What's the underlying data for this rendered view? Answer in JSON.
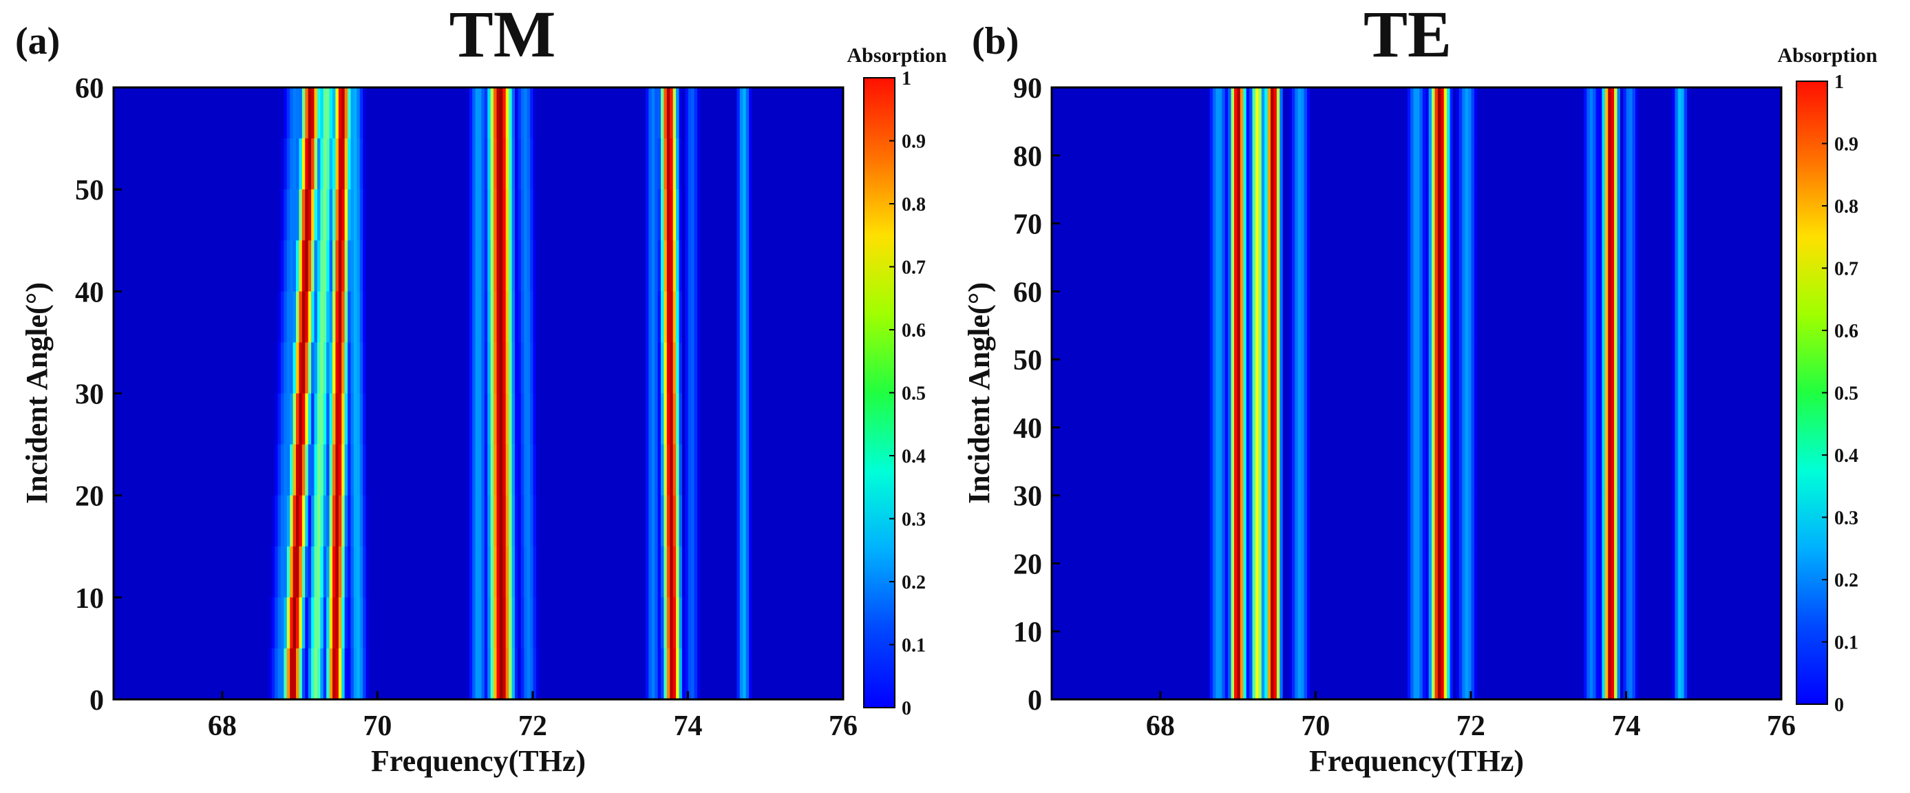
{
  "chart_data": [
    {
      "type": "heatmap",
      "panel_label": "(a)",
      "title": "TM",
      "xlabel": "Frequency(THz)",
      "ylabel": "Incident Angle(°)",
      "xlim": [
        66.6,
        76
      ],
      "ylim": [
        0,
        60
      ],
      "xticks": [
        "68",
        "70",
        "72",
        "74",
        "76"
      ],
      "yticks": [
        "0",
        "10",
        "20",
        "30",
        "40",
        "50",
        "60"
      ],
      "colorbar": {
        "label": "Absorption",
        "range": [
          0,
          1
        ],
        "ticks": [
          "0",
          "0.1",
          "0.2",
          "0.3",
          "0.4",
          "0.5",
          "0.6",
          "0.7",
          "0.8",
          "0.9",
          "1"
        ]
      },
      "background_absorption": 0.07,
      "bands": [
        {
          "f0": 68.9,
          "f90": 69.15,
          "peak": 0.97,
          "width": 0.11
        },
        {
          "f0": 69.2,
          "f90": 69.35,
          "peak": 0.5,
          "width": 0.1
        },
        {
          "f0": 69.45,
          "f90": 69.55,
          "peak": 0.96,
          "width": 0.1
        },
        {
          "f0": 68.75,
          "f90": 68.95,
          "peak": 0.25,
          "width": 0.15
        },
        {
          "f0": 69.75,
          "f90": 69.7,
          "peak": 0.3,
          "width": 0.12
        },
        {
          "f0": 71.6,
          "f90": 71.58,
          "peak": 0.98,
          "width": 0.14
        },
        {
          "f0": 71.3,
          "f90": 71.3,
          "peak": 0.28,
          "width": 0.12
        },
        {
          "f0": 71.95,
          "f90": 71.9,
          "peak": 0.25,
          "width": 0.12
        },
        {
          "f0": 73.8,
          "f90": 73.75,
          "peak": 0.96,
          "width": 0.1
        },
        {
          "f0": 73.55,
          "f90": 73.55,
          "peak": 0.25,
          "width": 0.1
        },
        {
          "f0": 74.05,
          "f90": 74.05,
          "peak": 0.22,
          "width": 0.1
        },
        {
          "f0": 74.72,
          "f90": 74.72,
          "peak": 0.3,
          "width": 0.09
        }
      ]
    },
    {
      "type": "heatmap",
      "panel_label": "(b)",
      "title": "TE",
      "xlabel": "Frequency(THz)",
      "ylabel": "Incident Angle(°)",
      "xlim": [
        66.6,
        76
      ],
      "ylim": [
        0,
        90
      ],
      "xticks": [
        "68",
        "70",
        "72",
        "74",
        "76"
      ],
      "yticks": [
        "0",
        "10",
        "20",
        "30",
        "40",
        "50",
        "60",
        "70",
        "80",
        "90"
      ],
      "colorbar": {
        "label": "Absorption",
        "range": [
          0,
          1
        ],
        "ticks": [
          "0",
          "0.1",
          "0.2",
          "0.3",
          "0.4",
          "0.5",
          "0.6",
          "0.7",
          "0.8",
          "0.9",
          "1"
        ]
      },
      "background_absorption": 0.07,
      "bands": [
        {
          "f0": 69.0,
          "f90": 69.0,
          "peak": 0.97,
          "width": 0.09
        },
        {
          "f0": 69.25,
          "f90": 69.25,
          "peak": 0.62,
          "width": 0.08
        },
        {
          "f0": 69.45,
          "f90": 69.45,
          "peak": 0.97,
          "width": 0.09
        },
        {
          "f0": 68.75,
          "f90": 68.75,
          "peak": 0.28,
          "width": 0.12
        },
        {
          "f0": 69.8,
          "f90": 69.8,
          "peak": 0.28,
          "width": 0.12
        },
        {
          "f0": 71.6,
          "f90": 71.6,
          "peak": 0.98,
          "width": 0.11
        },
        {
          "f0": 71.3,
          "f90": 71.3,
          "peak": 0.28,
          "width": 0.12
        },
        {
          "f0": 71.95,
          "f90": 71.95,
          "peak": 0.28,
          "width": 0.12
        },
        {
          "f0": 73.8,
          "f90": 73.8,
          "peak": 0.97,
          "width": 0.09
        },
        {
          "f0": 73.55,
          "f90": 73.55,
          "peak": 0.25,
          "width": 0.1
        },
        {
          "f0": 74.05,
          "f90": 74.05,
          "peak": 0.25,
          "width": 0.1
        },
        {
          "f0": 74.7,
          "f90": 74.7,
          "peak": 0.32,
          "width": 0.09
        }
      ]
    }
  ]
}
